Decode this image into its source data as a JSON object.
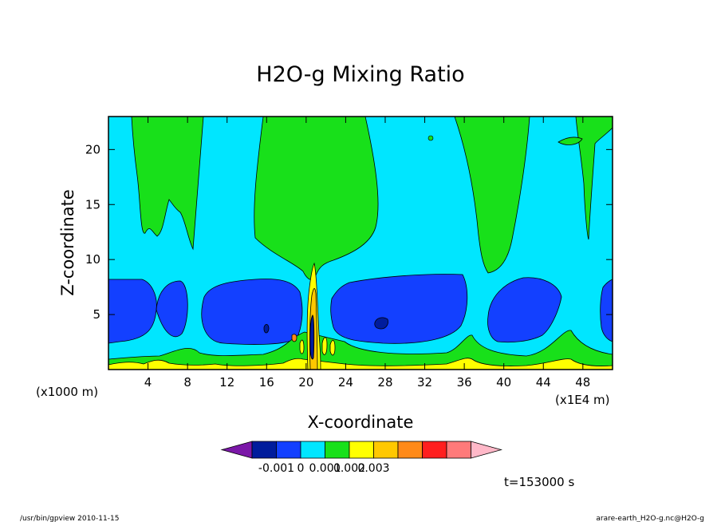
{
  "chart_data": {
    "type": "heatmap",
    "title": "H2O-g Mixing Ratio",
    "xlabel": "X-coordinate",
    "ylabel": "Z-coordinate",
    "x_unit_left": "(x1000 m)",
    "x_unit_right": "(x1E4 m)",
    "xlim": [
      0,
      51
    ],
    "ylim": [
      0,
      23
    ],
    "x_ticks": [
      4,
      8,
      12,
      16,
      20,
      24,
      28,
      32,
      36,
      40,
      44,
      48
    ],
    "y_ticks": [
      5,
      10,
      15,
      20
    ],
    "colorbar": {
      "colors": [
        "#7b18a8",
        "#001c9c",
        "#1340ff",
        "#00e6ff",
        "#18e01a",
        "#ffff00",
        "#ffc800",
        "#ff8a18",
        "#ff1f1f",
        "#ff7a7a",
        "#ffb8c8"
      ],
      "labels": [
        "-0.001",
        "0",
        "0.001",
        "0.002",
        "0.003"
      ]
    },
    "annotation": "t=153000 s"
  },
  "footer": {
    "left": "/usr/bin/gpview  2010-11-15",
    "right": "arare-earth_H2O-g.nc@H2O-g"
  }
}
